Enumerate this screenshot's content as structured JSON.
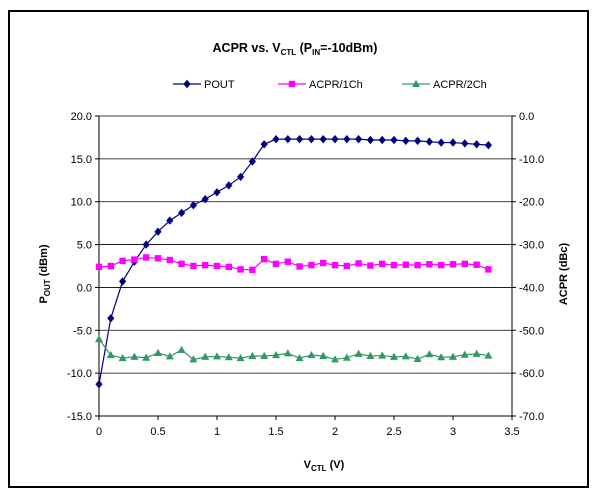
{
  "chart_data": {
    "type": "line",
    "title": {
      "main": "ACPR vs. V",
      "sub1": "CTL",
      "mid": " (P",
      "sub2": "IN",
      "tail": "=-10dBm)"
    },
    "xlabel": {
      "main": "V",
      "sub": "CTL",
      "tail": " (V)"
    },
    "ylabel_left": {
      "main": "P",
      "sub": "OUT",
      "tail": " (dBm)"
    },
    "ylabel_right": "ACPR (dBc)",
    "xlim": [
      0,
      3.5
    ],
    "ylim_left": [
      -15,
      20
    ],
    "ylim_right": [
      -70,
      0
    ],
    "x_ticks": [
      "0",
      "0.5",
      "1",
      "1.5",
      "2",
      "2.5",
      "3",
      "3.5"
    ],
    "y_left_ticks": [
      "-15.0",
      "-10.0",
      "-5.0",
      "0.0",
      "5.0",
      "10.0",
      "15.0",
      "20.0"
    ],
    "y_right_ticks": [
      "-70.0",
      "-60.0",
      "-50.0",
      "-40.0",
      "-30.0",
      "-20.0",
      "-10.0",
      "0.0"
    ],
    "grid": "horizontal",
    "legend_position": "top",
    "x": [
      0,
      0.1,
      0.2,
      0.3,
      0.4,
      0.5,
      0.6,
      0.7,
      0.8,
      0.9,
      1.0,
      1.1,
      1.2,
      1.3,
      1.4,
      1.5,
      1.6,
      1.7,
      1.8,
      1.9,
      2.0,
      2.1,
      2.2,
      2.3,
      2.4,
      2.5,
      2.6,
      2.7,
      2.8,
      2.9,
      3.0,
      3.1,
      3.2,
      3.3
    ],
    "series": [
      {
        "name": "POUT",
        "axis": "left",
        "color": "#000080",
        "marker": "diamond",
        "values": [
          -11.3,
          -3.6,
          0.7,
          3.0,
          5.0,
          6.5,
          7.8,
          8.7,
          9.6,
          10.3,
          11.1,
          11.9,
          12.9,
          14.7,
          16.7,
          17.3,
          17.3,
          17.3,
          17.3,
          17.3,
          17.3,
          17.3,
          17.3,
          17.2,
          17.2,
          17.2,
          17.1,
          17.1,
          17.0,
          16.9,
          16.9,
          16.8,
          16.7,
          16.6
        ]
      },
      {
        "name": "ACPR/1Ch",
        "axis": "right",
        "color": "#ff00ff",
        "marker": "square",
        "values": [
          -35.2,
          -35.0,
          -33.8,
          -33.5,
          -33.0,
          -33.2,
          -33.6,
          -34.5,
          -35.0,
          -34.8,
          -35.0,
          -35.2,
          -35.8,
          -35.9,
          -33.4,
          -34.5,
          -34.0,
          -35.1,
          -34.8,
          -34.3,
          -34.8,
          -35.0,
          -34.4,
          -34.9,
          -34.5,
          -34.8,
          -34.7,
          -34.8,
          -34.6,
          -34.8,
          -34.6,
          -34.5,
          -34.7,
          -35.8
        ]
      },
      {
        "name": "ACPR/2Ch",
        "axis": "right",
        "color": "#339966",
        "marker": "triangle",
        "values": [
          -52.1,
          -55.8,
          -56.5,
          -56.2,
          -56.4,
          -55.3,
          -56.1,
          -54.6,
          -56.8,
          -56.2,
          -56.1,
          -56.3,
          -56.5,
          -56.0,
          -56.0,
          -55.8,
          -55.4,
          -56.5,
          -55.8,
          -56.0,
          -56.8,
          -56.4,
          -55.5,
          -56.0,
          -55.9,
          -56.2,
          -56.1,
          -56.7,
          -55.6,
          -56.3,
          -56.2,
          -55.7,
          -55.5,
          -55.9
        ]
      }
    ]
  }
}
